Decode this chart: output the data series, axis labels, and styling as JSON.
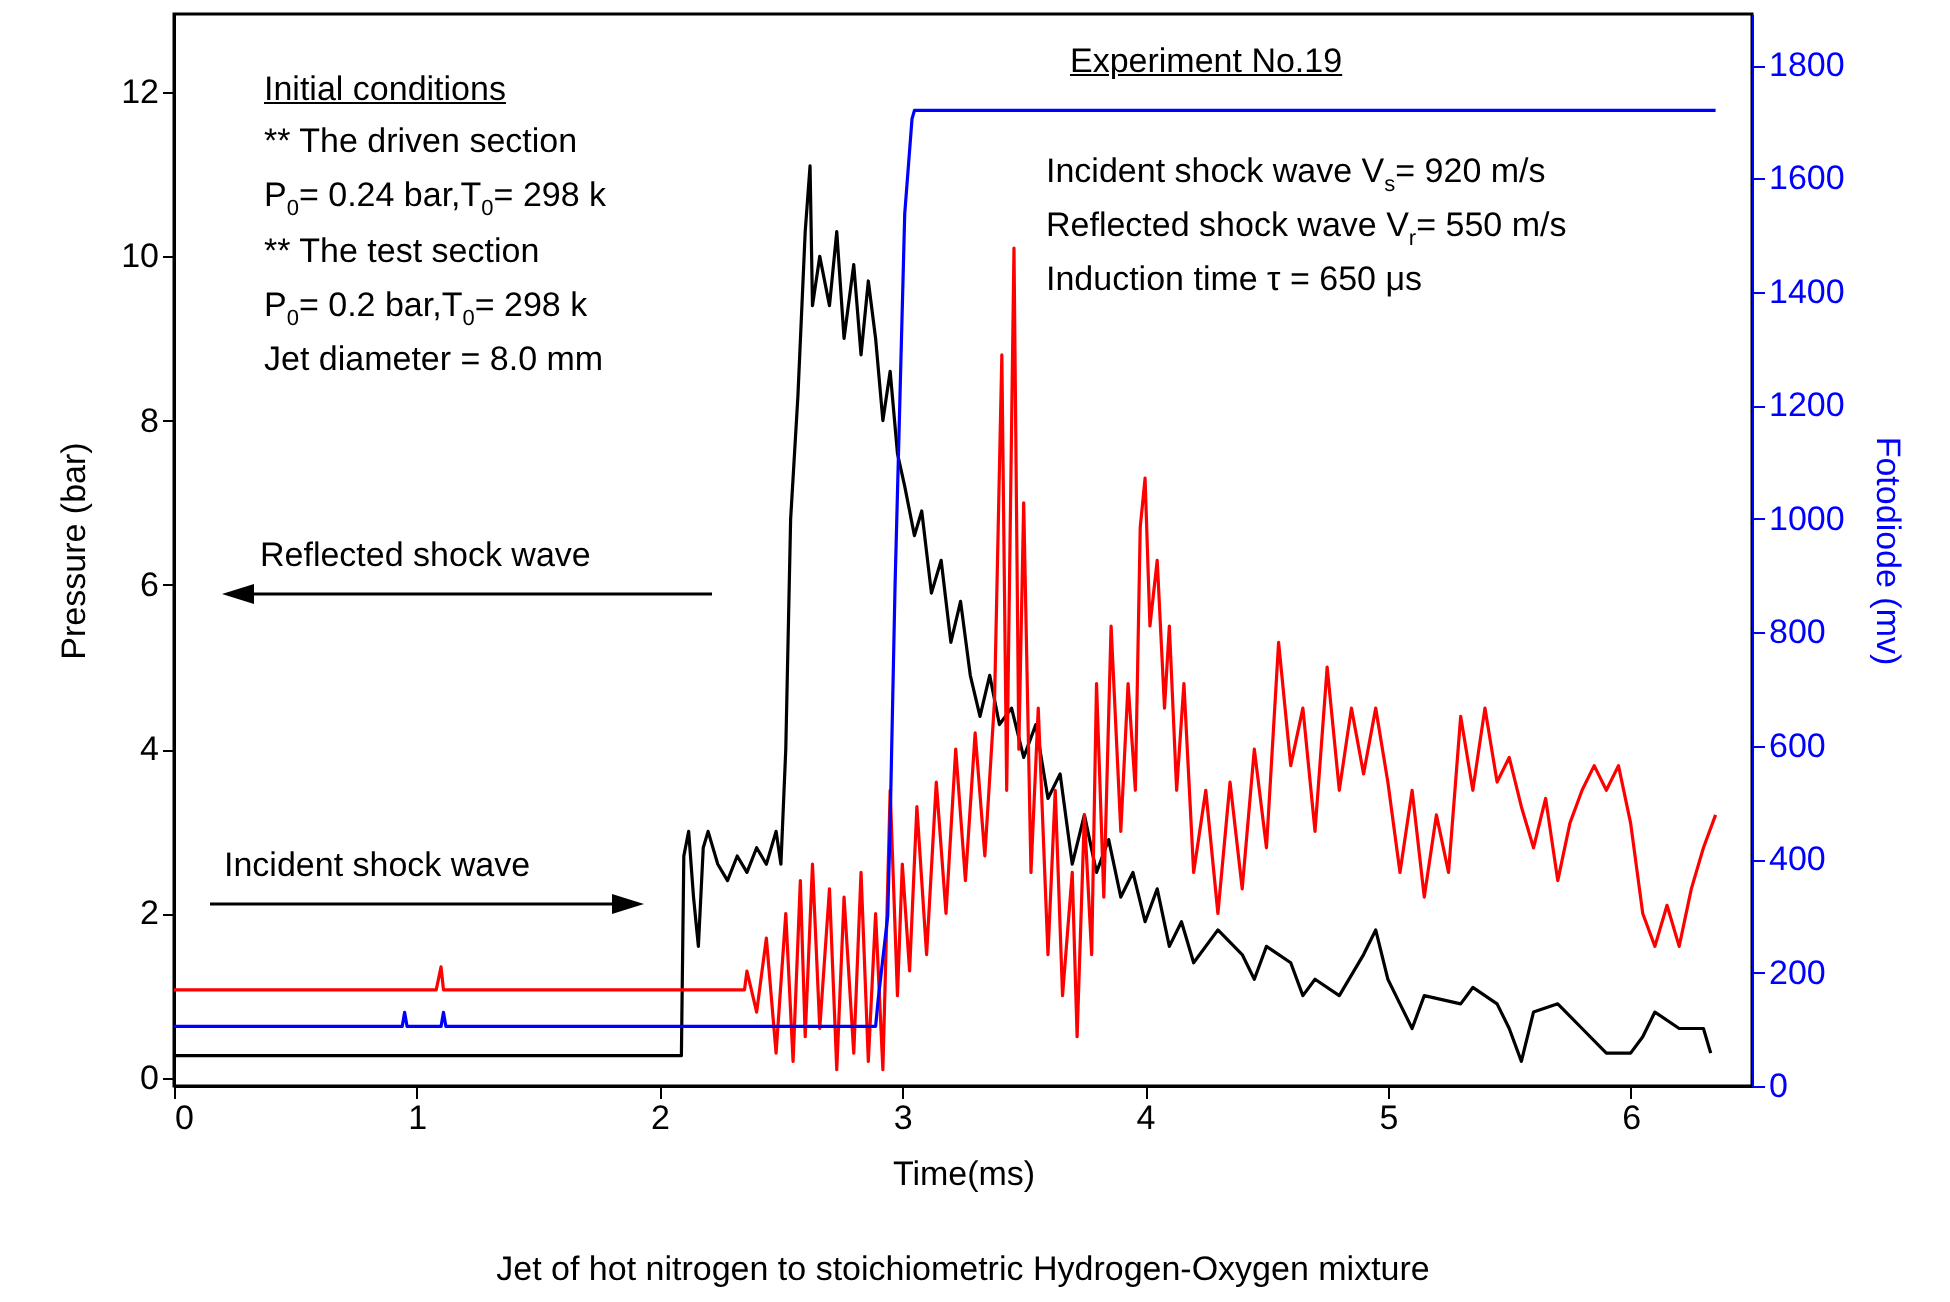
{
  "chart_data": {
    "type": "line",
    "title": "Jet of hot nitrogen to stoichiometric Hydrogen-Oxygen mixture",
    "xlabel": "Time(ms)",
    "ylabel": "Pressure (bar)",
    "y2label": "Fotodiode (mv)",
    "xlim": [
      0,
      6.5
    ],
    "xticks": [
      0,
      1,
      2,
      3,
      4,
      5,
      6
    ],
    "ylim": [
      -0.1,
      12.95
    ],
    "yticks": [
      0,
      2,
      4,
      6,
      8,
      10,
      12
    ],
    "y2lim": [
      0,
      1890
    ],
    "y2ticks": [
      0,
      200,
      400,
      600,
      800,
      1000,
      1200,
      1400,
      1600,
      1800
    ],
    "annotations": [
      "Initial conditions",
      "** The driven section",
      "P$_{0}$= 0.24 bar,T$_{0}$= 298 k",
      "** The test section",
      "P$_{0}$= 0.2 bar,T$_{0}$= 298 k",
      "Jet diameter = 8.0 mm",
      "Experiment No.19",
      "Incident shock wave V$_{s}$= 920 m/s",
      "Reflected shock wave V$_{r}$= 550 m/s",
      "Induction time τ = 650 μs",
      "Reflected shock wave",
      "Incident shock wave"
    ],
    "series": [
      {
        "color": "#000000",
        "x": [
          0,
          2.09,
          2.1,
          2.12,
          2.14,
          2.16,
          2.18,
          2.2,
          2.24,
          2.28,
          2.32,
          2.36,
          2.4,
          2.44,
          2.48,
          2.5,
          2.52,
          2.54,
          2.57,
          2.6,
          2.62,
          2.63,
          2.66,
          2.7,
          2.73,
          2.76,
          2.8,
          2.83,
          2.86,
          2.89,
          2.92,
          2.95,
          2.98,
          3.01,
          3.05,
          3.08,
          3.12,
          3.16,
          3.2,
          3.24,
          3.28,
          3.32,
          3.36,
          3.4,
          3.45,
          3.5,
          3.55,
          3.6,
          3.65,
          3.7,
          3.75,
          3.8,
          3.85,
          3.9,
          3.95,
          4.0,
          4.05,
          4.1,
          4.15,
          4.2,
          4.3,
          4.4,
          4.45,
          4.5,
          4.6,
          4.65,
          4.7,
          4.8,
          4.9,
          4.95,
          5.0,
          5.05,
          5.1,
          5.15,
          5.3,
          5.35,
          5.45,
          5.5,
          5.55,
          5.6,
          5.7,
          5.8,
          5.9,
          6.0,
          6.05,
          6.1,
          6.2,
          6.3,
          6.33
        ],
        "values": [
          0.27,
          0.27,
          2.7,
          3.0,
          2.2,
          1.6,
          2.8,
          3.0,
          2.6,
          2.4,
          2.7,
          2.5,
          2.8,
          2.6,
          3.0,
          2.6,
          4.0,
          6.8,
          8.3,
          10.3,
          11.1,
          9.4,
          10.0,
          9.4,
          10.3,
          9.0,
          9.9,
          8.8,
          9.7,
          9.0,
          8.0,
          8.6,
          7.6,
          7.2,
          6.6,
          6.9,
          5.9,
          6.3,
          5.3,
          5.8,
          4.9,
          4.4,
          4.9,
          4.3,
          4.5,
          3.9,
          4.3,
          3.4,
          3.7,
          2.6,
          3.2,
          2.5,
          2.9,
          2.2,
          2.5,
          1.9,
          2.3,
          1.6,
          1.9,
          1.4,
          1.8,
          1.5,
          1.2,
          1.6,
          1.4,
          1.0,
          1.2,
          1.0,
          1.5,
          1.8,
          1.2,
          0.9,
          0.6,
          1.0,
          0.9,
          1.1,
          0.9,
          0.6,
          0.2,
          0.8,
          0.9,
          0.6,
          0.3,
          0.3,
          0.5,
          0.8,
          0.6,
          0.6,
          0.3
        ]
      },
      {
        "color": "#ff0000",
        "x": [
          0,
          1.08,
          1.1,
          1.11,
          2.35,
          2.36,
          2.4,
          2.44,
          2.48,
          2.52,
          2.55,
          2.58,
          2.6,
          2.63,
          2.66,
          2.7,
          2.73,
          2.76,
          2.8,
          2.83,
          2.86,
          2.89,
          2.92,
          2.95,
          2.98,
          3.0,
          3.03,
          3.06,
          3.1,
          3.14,
          3.18,
          3.22,
          3.26,
          3.3,
          3.34,
          3.38,
          3.41,
          3.43,
          3.46,
          3.48,
          3.5,
          3.53,
          3.56,
          3.6,
          3.63,
          3.66,
          3.7,
          3.72,
          3.75,
          3.78,
          3.8,
          3.83,
          3.86,
          3.9,
          3.93,
          3.96,
          3.98,
          4.0,
          4.02,
          4.05,
          4.08,
          4.1,
          4.13,
          4.16,
          4.2,
          4.25,
          4.3,
          4.35,
          4.4,
          4.45,
          4.5,
          4.55,
          4.6,
          4.65,
          4.7,
          4.75,
          4.8,
          4.85,
          4.9,
          4.95,
          5.0,
          5.05,
          5.1,
          5.15,
          5.2,
          5.25,
          5.3,
          5.35,
          5.4,
          5.45,
          5.5,
          5.55,
          5.6,
          5.65,
          5.7,
          5.75,
          5.8,
          5.85,
          5.9,
          5.95,
          6.0,
          6.05,
          6.1,
          6.15,
          6.2,
          6.25,
          6.3,
          6.35
        ],
        "values": [
          1.07,
          1.07,
          1.35,
          1.07,
          1.07,
          1.3,
          0.8,
          1.7,
          0.3,
          2.0,
          0.2,
          2.4,
          0.5,
          2.6,
          0.6,
          2.3,
          0.1,
          2.2,
          0.3,
          2.5,
          0.2,
          2.0,
          0.1,
          3.5,
          1.0,
          2.6,
          1.3,
          3.3,
          1.5,
          3.6,
          2.0,
          4.0,
          2.4,
          4.2,
          2.7,
          4.6,
          8.8,
          3.5,
          10.1,
          4.0,
          7.0,
          2.5,
          4.5,
          1.5,
          3.5,
          1.0,
          2.5,
          0.5,
          3.2,
          1.5,
          4.8,
          2.2,
          5.5,
          3.0,
          4.8,
          3.5,
          6.7,
          7.3,
          5.5,
          6.3,
          4.5,
          5.5,
          3.5,
          4.8,
          2.5,
          3.5,
          2.0,
          3.6,
          2.3,
          4.0,
          2.8,
          5.3,
          3.8,
          4.5,
          3.0,
          5.0,
          3.5,
          4.5,
          3.7,
          4.5,
          3.6,
          2.5,
          3.5,
          2.2,
          3.2,
          2.5,
          4.4,
          3.5,
          4.5,
          3.6,
          3.9,
          3.3,
          2.8,
          3.4,
          2.4,
          3.1,
          3.5,
          3.8,
          3.5,
          3.8,
          3.1,
          2.0,
          1.6,
          2.1,
          1.6,
          2.3,
          2.8,
          3.2
        ]
      },
      {
        "color": "#0000ff",
        "axis": "y2",
        "x": [
          0,
          0.94,
          0.95,
          0.96,
          1.1,
          1.11,
          1.12,
          2.89,
          2.9,
          2.94,
          2.95,
          2.97,
          2.99,
          3.01,
          3.04,
          3.05,
          6.35
        ],
        "values": [
          105,
          105,
          130,
          105,
          105,
          130,
          105,
          105,
          150,
          300,
          465,
          880,
          1209,
          1538,
          1705,
          1720,
          1720
        ]
      }
    ]
  }
}
